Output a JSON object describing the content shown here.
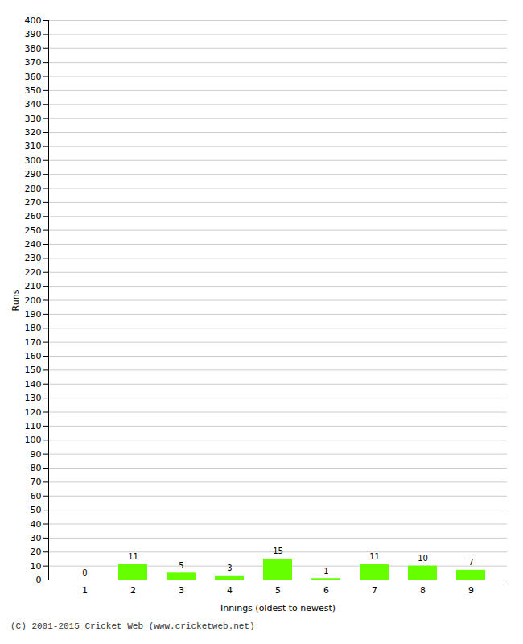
{
  "chart_data": {
    "type": "bar",
    "categories": [
      "1",
      "2",
      "3",
      "4",
      "5",
      "6",
      "7",
      "8",
      "9"
    ],
    "values": [
      0,
      11,
      5,
      3,
      15,
      1,
      11,
      10,
      7
    ],
    "color": "#66ff00",
    "xlabel": "Innings (oldest to newest)",
    "ylabel": "Runs",
    "ylim": [
      0,
      400
    ],
    "yticks": [
      0,
      10,
      20,
      30,
      40,
      50,
      60,
      70,
      80,
      90,
      100,
      110,
      120,
      130,
      140,
      150,
      160,
      170,
      180,
      190,
      200,
      210,
      220,
      230,
      240,
      250,
      260,
      270,
      280,
      290,
      300,
      310,
      320,
      330,
      340,
      350,
      360,
      370,
      380,
      390,
      400
    ],
    "grid": true,
    "data_labels": true,
    "caption": "(C) 2001-2015 Cricket Web (www.cricketweb.net)"
  }
}
